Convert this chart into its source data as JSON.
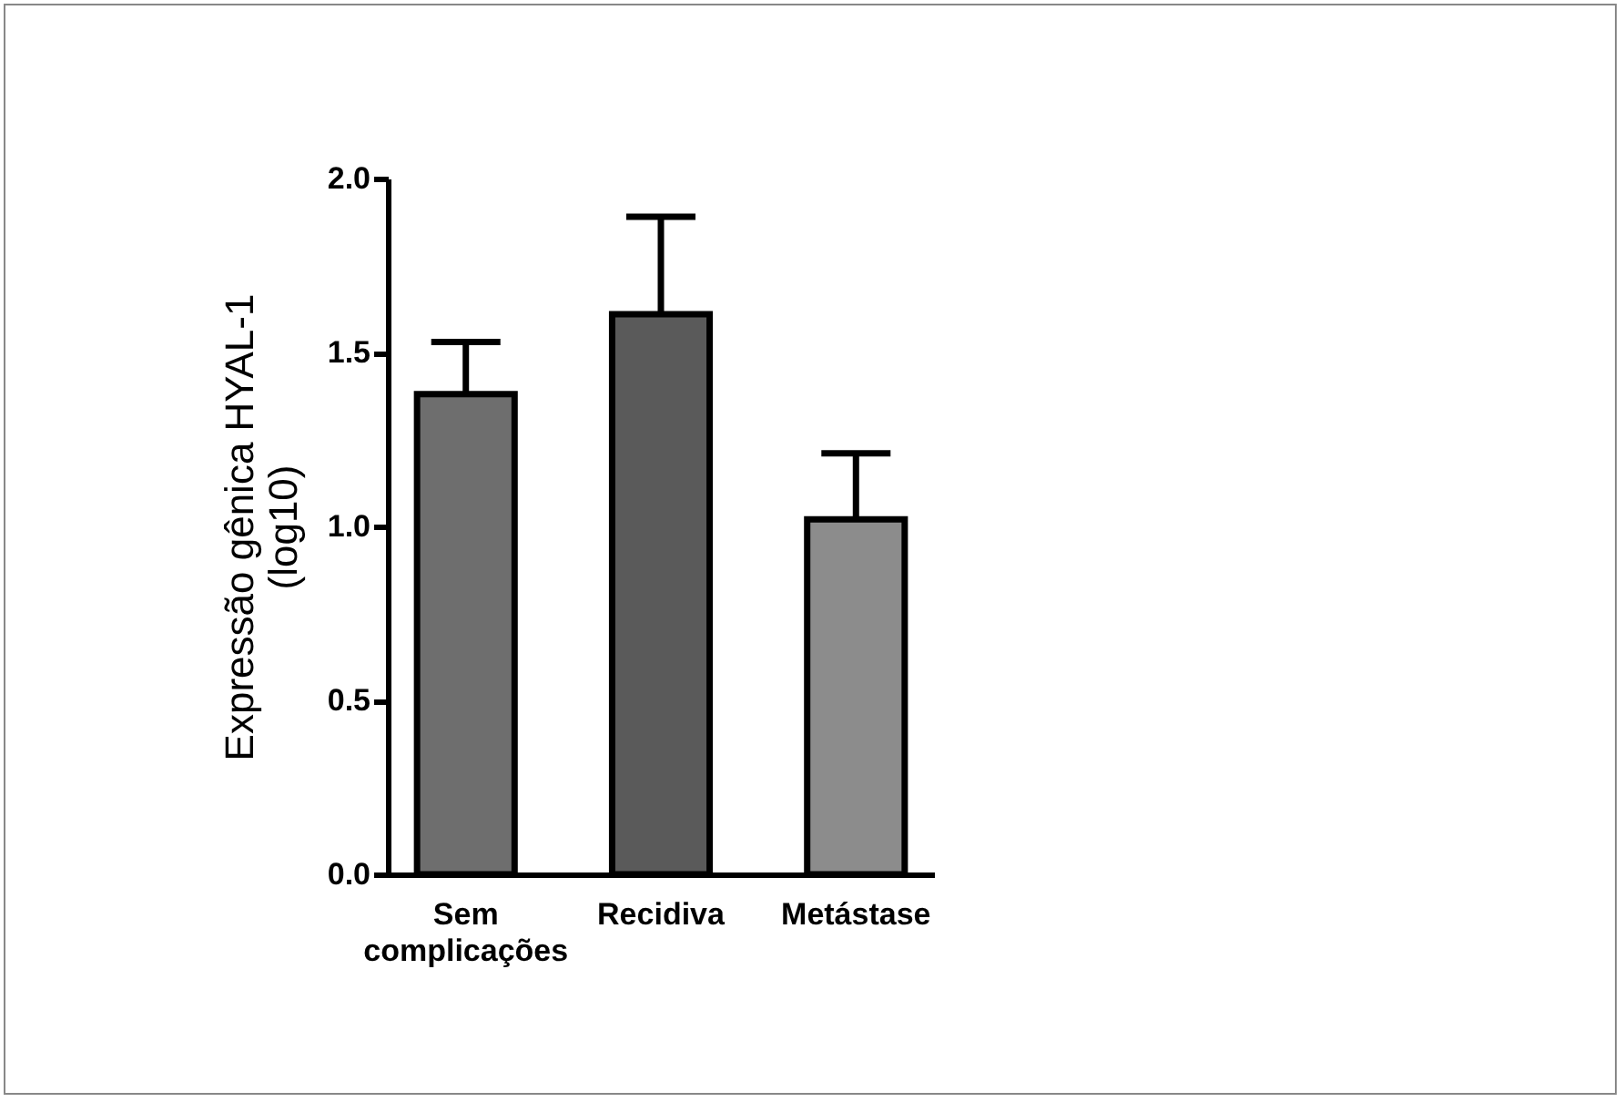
{
  "chart_data": {
    "type": "bar",
    "ylabel": "Expressão gênica HYAL-1 (log10)",
    "categories": [
      "Sem complicações",
      "Recidiva",
      "Metástase"
    ],
    "values": [
      1.38,
      1.61,
      1.02
    ],
    "errors": [
      [
        1.38,
        1.53
      ],
      [
        1.61,
        1.89
      ],
      [
        1.02,
        1.21
      ]
    ],
    "colors": [
      "#6e6e6e",
      "#5a5a5a",
      "#8c8c8c"
    ],
    "ylim": [
      0,
      2
    ],
    "yticks": [
      {
        "value": 0,
        "label": "0.0"
      },
      {
        "value": 0.5,
        "label": "0.5"
      },
      {
        "value": 1,
        "label": "1.0"
      },
      {
        "value": 1.5,
        "label": "1.5"
      },
      {
        "value": 2,
        "label": "2.0"
      }
    ],
    "grid": false,
    "legend": false
  }
}
